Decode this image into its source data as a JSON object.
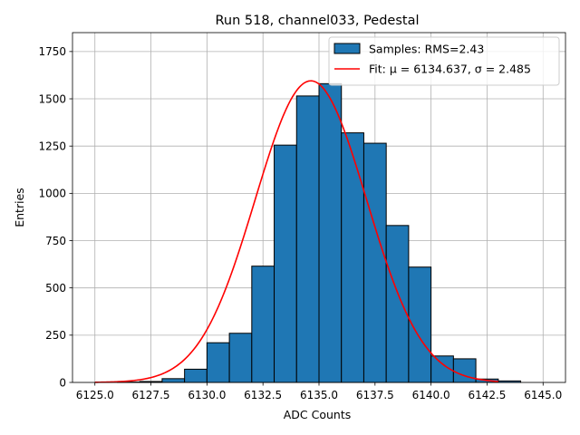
{
  "chart_data": {
    "type": "bar",
    "title": "Run 518, channel033, Pedestal",
    "xlabel": "ADC Counts",
    "ylabel": "Entries",
    "xlim": [
      6124.0,
      6146.0
    ],
    "ylim": [
      0,
      1850
    ],
    "x_ticks": [
      6125.0,
      6127.5,
      6130.0,
      6132.5,
      6135.0,
      6137.5,
      6140.0,
      6142.5,
      6145.0
    ],
    "x_tick_labels": [
      "6125.0",
      "6127.5",
      "6130.0",
      "6132.5",
      "6135.0",
      "6137.5",
      "6140.0",
      "6142.5",
      "6145.0"
    ],
    "y_ticks": [
      0,
      250,
      500,
      750,
      1000,
      1250,
      1500,
      1750
    ],
    "y_tick_labels": [
      "0",
      "250",
      "500",
      "750",
      "1000",
      "1250",
      "1500",
      "1750"
    ],
    "grid": true,
    "legend_position": "top-right",
    "histogram": {
      "name": "Samples: RMS=2.43",
      "color": "#1f77b4",
      "bin_edges": [
        6125,
        6126,
        6127,
        6128,
        6129,
        6130,
        6131,
        6132,
        6133,
        6134,
        6135,
        6136,
        6137,
        6138,
        6139,
        6140,
        6141,
        6142,
        6143
      ],
      "counts": [
        0,
        2,
        5,
        20,
        70,
        210,
        260,
        615,
        1255,
        1515,
        1580,
        1320,
        1265,
        830,
        610,
        140,
        125,
        18,
        8
      ]
    },
    "fit": {
      "name": "Fit: μ = 6134.637, σ = 2.485",
      "color": "#ff0000",
      "mu": 6134.637,
      "sigma": 2.485,
      "amplitude": 1595,
      "x_range": [
        6125.0,
        6143.0
      ]
    }
  }
}
